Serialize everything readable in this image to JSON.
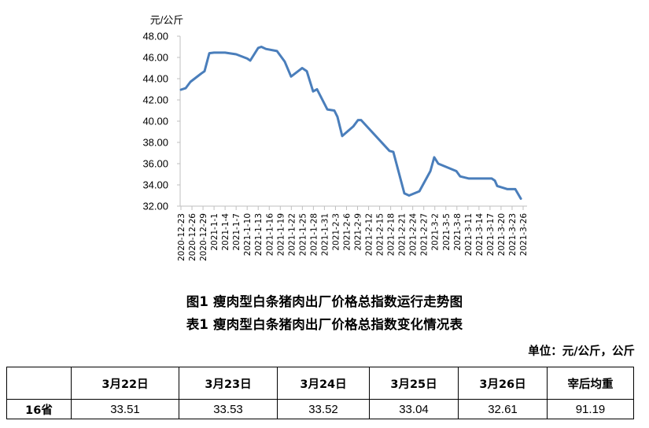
{
  "chart_data": {
    "type": "line",
    "title": "图1 瘦肉型白条猪肉出厂价格总指数运行走势图",
    "ylabel": "元/公斤",
    "xlabel": "",
    "ylim": [
      32,
      48
    ],
    "y_ticks": [
      "32.00",
      "34.00",
      "36.00",
      "38.00",
      "40.00",
      "42.00",
      "44.00",
      "46.00",
      "48.00"
    ],
    "x_tick_labels": [
      "2020-12-23",
      "2020-12-26",
      "2020-12-29",
      "2021-1-1",
      "2021-1-4",
      "2021-1-7",
      "2021-1-10",
      "2021-1-13",
      "2021-1-16",
      "2021-1-19",
      "2021-1-22",
      "2021-1-25",
      "2021-1-28",
      "2021-1-31",
      "2021-2-3",
      "2021-2-6",
      "2021-2-9",
      "2021-2-12",
      "2021-2-15",
      "2021-2-18",
      "2021-2-21",
      "2021-2-24",
      "2021-2-27",
      "2021-3-2",
      "2021-3-5",
      "2021-3-8",
      "2021-3-11",
      "2021-3-14",
      "2021-3-17",
      "2021-3-20",
      "2021-3-23",
      "2021-3-26"
    ],
    "grid": false,
    "legend": null,
    "line_color": "#4a7ebb",
    "series": [
      {
        "name": "瘦肉型白条猪肉出厂价格总指数",
        "points": [
          {
            "t": 0.0,
            "v": 42.96
          },
          {
            "t": 0.43,
            "v": 43.1
          },
          {
            "t": 0.86,
            "v": 43.7
          },
          {
            "t": 1.85,
            "v": 44.5
          },
          {
            "t": 2.14,
            "v": 44.7
          },
          {
            "t": 2.57,
            "v": 46.4
          },
          {
            "t": 3.0,
            "v": 46.45
          },
          {
            "t": 4.0,
            "v": 46.45
          },
          {
            "t": 5.0,
            "v": 46.3
          },
          {
            "t": 6.0,
            "v": 45.9
          },
          {
            "t": 6.28,
            "v": 45.7
          },
          {
            "t": 7.0,
            "v": 46.9
          },
          {
            "t": 7.28,
            "v": 47.0
          },
          {
            "t": 7.7,
            "v": 46.8
          },
          {
            "t": 8.7,
            "v": 46.6
          },
          {
            "t": 9.41,
            "v": 45.6
          },
          {
            "t": 9.98,
            "v": 44.2
          },
          {
            "t": 10.98,
            "v": 45.0
          },
          {
            "t": 11.4,
            "v": 44.7
          },
          {
            "t": 11.97,
            "v": 42.8
          },
          {
            "t": 12.33,
            "v": 43.0
          },
          {
            "t": 13.26,
            "v": 41.1
          },
          {
            "t": 13.9,
            "v": 41.0
          },
          {
            "t": 14.18,
            "v": 40.4
          },
          {
            "t": 14.61,
            "v": 38.6
          },
          {
            "t": 15.61,
            "v": 39.5
          },
          {
            "t": 16.04,
            "v": 40.1
          },
          {
            "t": 16.32,
            "v": 40.1
          },
          {
            "t": 18.89,
            "v": 37.2
          },
          {
            "t": 19.24,
            "v": 37.1
          },
          {
            "t": 20.24,
            "v": 33.2
          },
          {
            "t": 20.67,
            "v": 33.0
          },
          {
            "t": 21.6,
            "v": 33.4
          },
          {
            "t": 22.6,
            "v": 35.3
          },
          {
            "t": 22.95,
            "v": 36.6
          },
          {
            "t": 23.31,
            "v": 36.0
          },
          {
            "t": 24.95,
            "v": 35.3
          },
          {
            "t": 25.3,
            "v": 34.8
          },
          {
            "t": 26.09,
            "v": 34.6
          },
          {
            "t": 28.16,
            "v": 34.6
          },
          {
            "t": 28.44,
            "v": 34.4
          },
          {
            "t": 28.65,
            "v": 33.9
          },
          {
            "t": 29.58,
            "v": 33.6
          },
          {
            "t": 30.29,
            "v": 33.6
          },
          {
            "t": 30.79,
            "v": 32.7
          }
        ]
      }
    ]
  },
  "captions": {
    "figure": "图1 瘦肉型白条猪肉出厂价格总指数运行走势图",
    "table": "表1 瘦肉型白条猪肉出厂价格总指数变化情况表"
  },
  "unit_note": "单位：元/公斤，公斤",
  "table": {
    "headers": [
      "",
      "3月22日",
      "3月23日",
      "3月24日",
      "3月25日",
      "3月26日",
      "宰后均重"
    ],
    "rows": [
      {
        "label": "16省",
        "values": [
          "33.51",
          "33.53",
          "33.52",
          "33.04",
          "32.61",
          "91.19"
        ]
      }
    ]
  }
}
